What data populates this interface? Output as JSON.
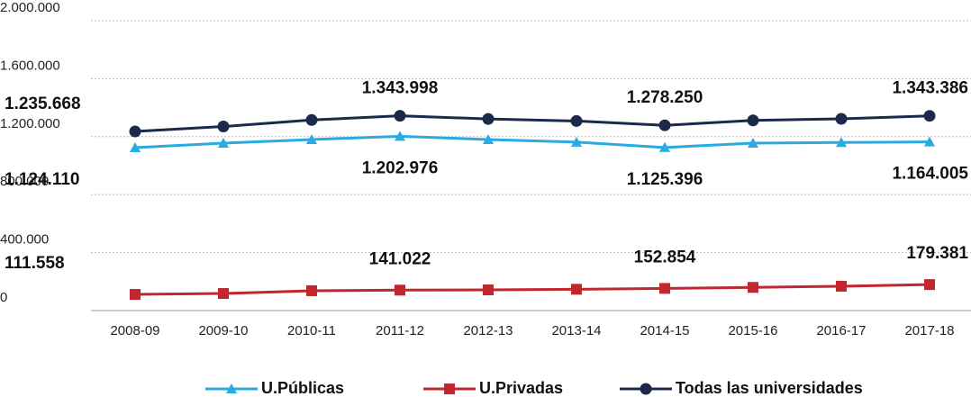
{
  "chart_data": {
    "type": "line",
    "categories": [
      "2008-09",
      "2009-10",
      "2010-11",
      "2011-12",
      "2012-13",
      "2013-14",
      "2014-15",
      "2015-16",
      "2016-17",
      "2017-18"
    ],
    "series": [
      {
        "name": "U.Públicas",
        "color": "#29abe2",
        "marker": "triangle",
        "values": [
          1124110,
          1155000,
          1180000,
          1202976,
          1180000,
          1162000,
          1125396,
          1155000,
          1160000,
          1164005
        ],
        "value_labels": [
          "1.124.110",
          null,
          null,
          "1.202.976",
          null,
          null,
          "1.125.396",
          null,
          null,
          "1.164.005"
        ]
      },
      {
        "name": "U.Privadas",
        "color": "#c1272d",
        "marker": "square",
        "values": [
          111558,
          118000,
          137000,
          141022,
          143000,
          147000,
          152854,
          160000,
          168000,
          179381
        ],
        "value_labels": [
          "111.558",
          null,
          null,
          "141.022",
          null,
          null,
          "152.854",
          null,
          null,
          "179.381"
        ]
      },
      {
        "name": "Todas las universidades",
        "color": "#1b2a4a",
        "marker": "circle",
        "values": [
          1235668,
          1270000,
          1315000,
          1343998,
          1322000,
          1308000,
          1278250,
          1312000,
          1323000,
          1343386
        ],
        "value_labels": [
          "1.235.668",
          null,
          null,
          "1.343.998",
          null,
          null,
          "1.278.250",
          null,
          null,
          "1.343.386"
        ]
      }
    ],
    "ylim": [
      0,
      2000000
    ],
    "yticks": [
      0,
      {
        "value": 400000,
        "label": "400.000"
      },
      {
        "value": 800000,
        "label": "800.000"
      },
      {
        "value": 1200000,
        "label": "1.200.000"
      },
      {
        "value": 1600000,
        "label": "1.600.000"
      },
      {
        "value": 2000000,
        "label": "2.000.000"
      }
    ],
    "grid": true,
    "legend": "bottom"
  }
}
